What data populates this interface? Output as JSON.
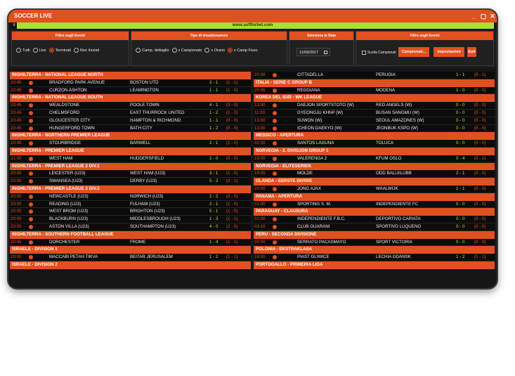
{
  "window": {
    "title": "SOCCER LIVE",
    "controls": [
      "_",
      "▢",
      "✕"
    ]
  },
  "url": {
    "text": "www.softforbet.com",
    "toggle": "≡"
  },
  "filter1": {
    "title": "Filtro sugli Eventi",
    "options": [
      {
        "label": "Tutti",
        "selected": false
      },
      {
        "label": "Live",
        "selected": false
      },
      {
        "label": "Terminati",
        "selected": true
      },
      {
        "label": "Non Iniziati",
        "selected": false
      }
    ]
  },
  "filter2": {
    "title": "Tipo di visualizzazione",
    "options": [
      {
        "label": "Camp. dettaglio",
        "selected": false
      },
      {
        "label": "x Campionato",
        "selected": false
      },
      {
        "label": "x Orario",
        "selected": false
      },
      {
        "label": "x Camp Fisso",
        "selected": true
      }
    ]
  },
  "date_panel": {
    "title": "Seleziona la Data",
    "value": "11/09/2017"
  },
  "filter3": {
    "title": "Filtro sugli Eventi",
    "checkbox_label": "Scelta Campionati",
    "btn_campionati": "Campionati...",
    "btn_impostazioni": "Impostazioni",
    "btn_exit": "Exit"
  },
  "left": [
    {
      "type": "league",
      "name": "INGHILTERRA - NATIONAL LEAGUE NORTH"
    },
    {
      "type": "match",
      "time": "20:45",
      "home": "BRADFORD PARK AVENUE",
      "away": "BOSTON UTD",
      "score": "2 - 1",
      "half": "(1 - 1)"
    },
    {
      "type": "match",
      "time": "20:45",
      "home": "CURZON ASHTON",
      "away": "LEAMINGTON",
      "score": "1 - 1",
      "half": "(1 - 0)"
    },
    {
      "type": "league",
      "name": "INGHILTERRA - NATIONAL LEAGUE SOUTH"
    },
    {
      "type": "match",
      "time": "20:45",
      "home": "WEALDSTONE",
      "away": "POOLE TOWN",
      "score": "4 - 1",
      "half": "(3 - 0)"
    },
    {
      "type": "match",
      "time": "20:45",
      "home": "CHELMSFORD",
      "away": "EAST THURROCK UNITED",
      "score": "1 - 2",
      "half": "(1 - 2)"
    },
    {
      "type": "match",
      "time": "20:45",
      "home": "GLOUCESTER CITY",
      "away": "HAMPTON & RICHMOND",
      "score": "1 - 1",
      "half": "(0 - 0)"
    },
    {
      "type": "match",
      "time": "20:45",
      "home": "HUNGERFORD TOWN",
      "away": "BATH CITY",
      "score": "1 - 2",
      "half": "(0 - 0)"
    },
    {
      "type": "league",
      "name": "INGHILTERRA - NORTHERN PREMIER LEAGUE"
    },
    {
      "type": "match",
      "time": "20:45",
      "home": "STOURBRIDGE",
      "away": "BARWELL",
      "score": "2 - 1",
      "half": "(1 - 0)"
    },
    {
      "type": "league",
      "name": "INGHILTERRA - PREMIER LEAGUE"
    },
    {
      "type": "match",
      "time": "21:00",
      "home": "WEST HAM",
      "away": "HUDDERSFIELD",
      "score": "2 - 0",
      "half": "(0 - 0)"
    },
    {
      "type": "league",
      "name": "INGHILTERRA - PREMIER LEAGUE 2 DIV.1"
    },
    {
      "type": "match",
      "time": "20:45",
      "home": "LEICESTER (U23)",
      "away": "WEST HAM (U23)",
      "score": "3 - 1",
      "half": "(1 - 0)"
    },
    {
      "type": "match",
      "time": "20:00",
      "home": "SWANSEA (U23)",
      "away": "DERBY (U23)",
      "score": "5 - 2",
      "half": "(3 - 1)"
    },
    {
      "type": "league",
      "name": "INGHILTERRA - PREMIER LEAGUE 2 DIV.2"
    },
    {
      "type": "match",
      "time": "20:00",
      "home": "NEWCASTLE (U23)",
      "away": "NORWICH (U23)",
      "score": "2 - 2",
      "half": "(2 - 0)"
    },
    {
      "type": "match",
      "time": "20:00",
      "home": "READING (U23)",
      "away": "FULHAM (U23)",
      "score": "2 - 1",
      "half": "(1 - 0)"
    },
    {
      "type": "match",
      "time": "20:00",
      "home": "WEST BROM (U23)",
      "away": "BRIGHTON (U23)",
      "score": "5 - 1",
      "half": "(1 - 0)"
    },
    {
      "type": "match",
      "time": "20:00",
      "home": "BLACKBURN (U23)",
      "away": "MIDDLESBROUGH (U23)",
      "score": "1 - 3",
      "half": "(1 - 1)"
    },
    {
      "type": "match",
      "time": "20:00",
      "home": "ASTON VILLA (U23)",
      "away": "SOUTHAMPTON (U23)",
      "score": "4 - 0",
      "half": "(2 - 0)"
    },
    {
      "type": "league",
      "name": "INGHILTERRA - SOUTHERN FOOTBALL LEAGUE"
    },
    {
      "type": "match",
      "time": "20:45",
      "home": "DORCHESTER",
      "away": "FROME",
      "score": "1 - 4",
      "half": "(1 - 1)"
    },
    {
      "type": "league",
      "name": "ISRAELE - DIVISION 1"
    },
    {
      "type": "match",
      "time": "20:00",
      "home": "MACCABI PETAH TIKVA",
      "away": "BEITAR JERUSALEM",
      "score": "1 - 2",
      "half": "(1 - 1)"
    },
    {
      "type": "league",
      "name": "ISRAELE - DIVISION 2"
    }
  ],
  "right": [
    {
      "type": "match",
      "time": "20:30",
      "home": "CITTADELLA",
      "away": "PERUGIA",
      "score": "1 - 1",
      "half": "(0 - 1)"
    },
    {
      "type": "league",
      "name": "ITALIA - SERIE C GROUP B"
    },
    {
      "type": "match",
      "time": "20:45",
      "home": "REGGIANA",
      "away": "MODENA",
      "score": "1 - 0",
      "half": "(0 - 0)"
    },
    {
      "type": "league",
      "name": "KOREA DEL SUD - WK LEAGUE"
    },
    {
      "type": "match",
      "time": "13:00",
      "home": "DAEJON SPORTSTOTO (W)",
      "away": "RED ANGELS (W)",
      "score": "0 - 0",
      "half": "(0 - 0)"
    },
    {
      "type": "match",
      "time": "11:00",
      "home": "GYEONGJU KHNP (W)",
      "away": "BUSAN SANGMU (W)",
      "score": "0 - 0",
      "half": "(0 - 0)"
    },
    {
      "type": "match",
      "time": "13:00",
      "home": "SUWON (W)",
      "away": "SEOUL AMAZONES (W)",
      "score": "0 - 0",
      "half": "(0 - 0)"
    },
    {
      "type": "match",
      "time": "13:00",
      "home": "ICHEON DAEKYO (W)",
      "away": "JEONBUK KSPO (W)",
      "score": "0 - 0",
      "half": "(0 - 0)"
    },
    {
      "type": "league",
      "name": "MESSICO - APERTURA"
    },
    {
      "type": "match",
      "time": "02:30",
      "home": "SANTOS LAGUNA",
      "away": "TOLUCA",
      "score": "0 - 0",
      "half": "(0 - 0)"
    },
    {
      "type": "league",
      "name": "NORVEGIA - 2. DIVISJON GROUP 1"
    },
    {
      "type": "match",
      "time": "19:00",
      "home": "VALERENGA 2",
      "away": "KFUM OSLO",
      "score": "0 - 4",
      "half": "(0 - 1)"
    },
    {
      "type": "league",
      "name": "NORVEGIA - ELITESERIEN"
    },
    {
      "type": "match",
      "time": "19:00",
      "home": "MOLDE",
      "away": "ODD BALLKLUBB",
      "score": "2 - 1",
      "half": "(0 - 0)"
    },
    {
      "type": "league",
      "name": "OLANDA - EERSTE DIVISIE"
    },
    {
      "type": "match",
      "time": "20:00",
      "home": "JONG AJAX",
      "away": "WAALWIJK",
      "score": "1 - 1",
      "half": "(0 - 0)"
    },
    {
      "type": "league",
      "name": "PANAMA - APERTURA"
    },
    {
      "type": "match",
      "time": "01:00",
      "home": "SPORTING S. M.",
      "away": "INDEPENDIENTE FC",
      "score": "0 - 0",
      "half": "(0 - 0)"
    },
    {
      "type": "league",
      "name": "PARAGUAY - CLAUSURA"
    },
    {
      "type": "match",
      "time": "01:00",
      "home": "INDEPENDIENTE F.B.C.",
      "away": "DEPORTIVO CAPIATA",
      "score": "0 - 0",
      "half": "(0 - 0)"
    },
    {
      "type": "match",
      "time": "03:10",
      "home": "CLUB GUARANI",
      "away": "SPORTIVO LUQUENO",
      "score": "0 - 0",
      "half": "(0 - 0)"
    },
    {
      "type": "league",
      "name": "PERU - SECONDA DIVISIONE"
    },
    {
      "type": "match",
      "time": "00:00",
      "home": "SERRATO PACASMAYO",
      "away": "SPORT VICTORIA",
      "score": "0 - 0",
      "half": "(0 - 0)"
    },
    {
      "type": "league",
      "name": "POLONIA - EKSTRAKLASA"
    },
    {
      "type": "match",
      "time": "18:00",
      "home": "PIAST GLIWICE",
      "away": "LECHIA GDANSK",
      "score": "1 - 2",
      "half": "(1 - 1)"
    },
    {
      "type": "league",
      "name": "PORTOGALLO - PRIMEIRA LIGA"
    }
  ]
}
